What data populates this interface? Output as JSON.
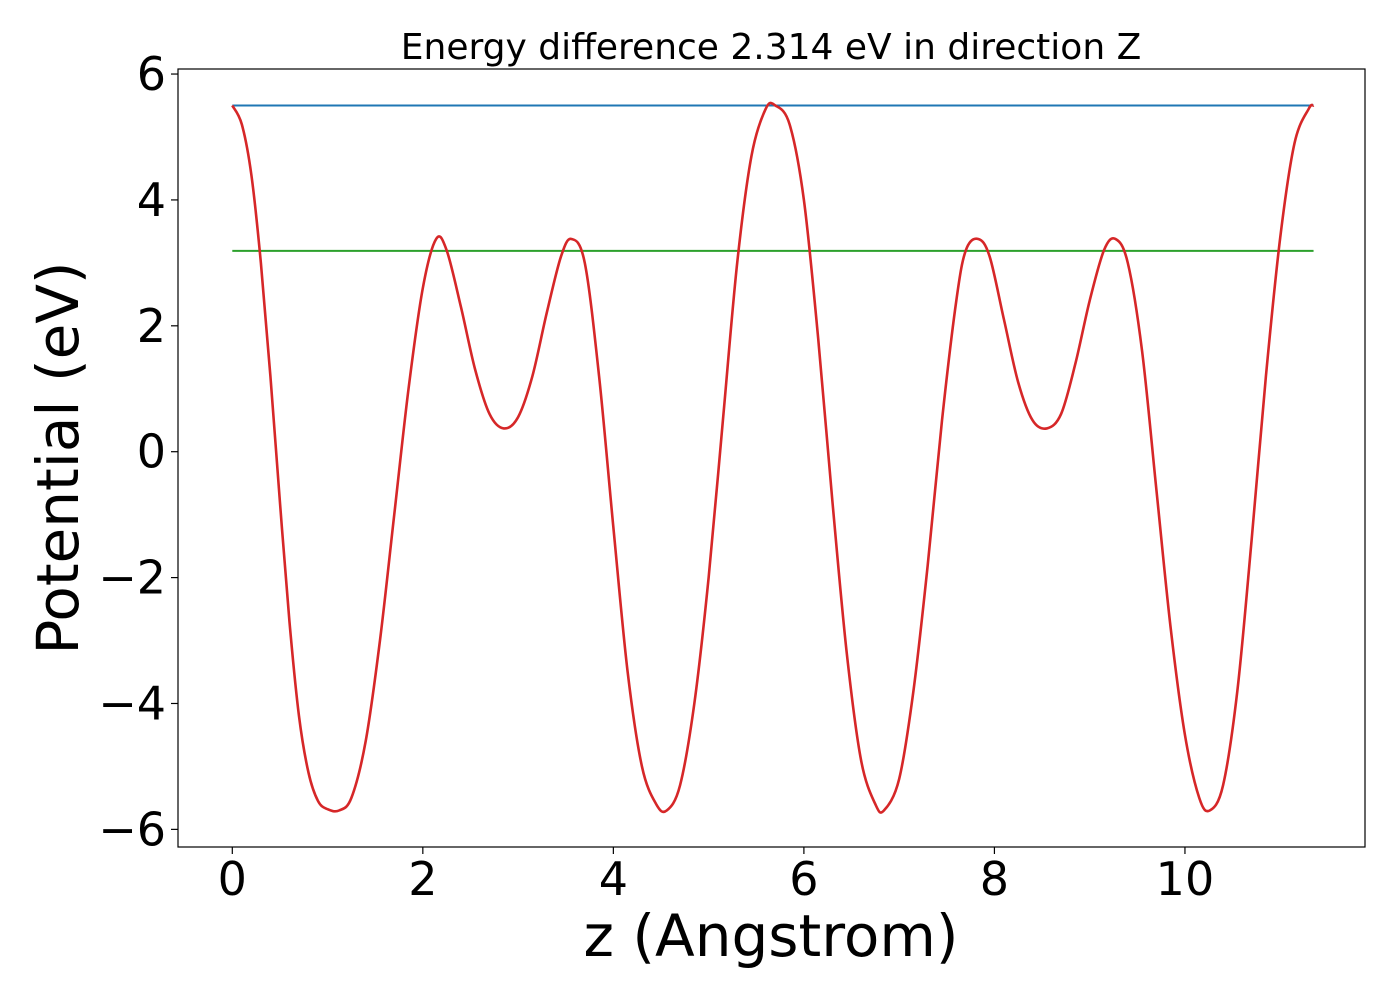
{
  "chart_data": {
    "type": "line",
    "title": "Energy difference 2.314 eV in direction Z",
    "xlabel": "z (Angstrom)",
    "ylabel": "Potential (eV)",
    "xlim": [
      -0.57,
      11.89
    ],
    "ylim": [
      -6.28,
      6.08
    ],
    "xticks": [
      0,
      2,
      4,
      6,
      8,
      10
    ],
    "xtick_labels": [
      "0",
      "2",
      "4",
      "6",
      "8",
      "10"
    ],
    "yticks": [
      6,
      4,
      2,
      0,
      -2,
      -4,
      -6
    ],
    "ytick_labels": [
      "6",
      "4",
      "2",
      "0",
      "−2",
      "−4",
      "−6"
    ],
    "grid": false,
    "legend": "none",
    "series": [
      {
        "color": "#d62728",
        "x": [
          0,
          0.1,
          0.2,
          0.3,
          0.4,
          0.5,
          0.6,
          0.7,
          0.8,
          0.9,
          1.0,
          1.12,
          1.25,
          1.4,
          1.55,
          1.7,
          1.85,
          2.0,
          2.14,
          2.25,
          2.4,
          2.55,
          2.7,
          2.85,
          3.0,
          3.15,
          3.3,
          3.45,
          3.56,
          3.7,
          3.85,
          4.0,
          4.15,
          4.3,
          4.45,
          4.56,
          4.7,
          4.85,
          5.0,
          5.15,
          5.3,
          5.45,
          5.6,
          5.7,
          5.85,
          6.0,
          6.15,
          6.3,
          6.45,
          6.6,
          6.75,
          6.84,
          7.0,
          7.15,
          7.3,
          7.45,
          7.6,
          7.7,
          7.83,
          7.95,
          8.1,
          8.25,
          8.4,
          8.55,
          8.7,
          8.85,
          9.0,
          9.15,
          9.27,
          9.4,
          9.55,
          9.7,
          9.85,
          10.0,
          10.15,
          10.26,
          10.4,
          10.55,
          10.7,
          10.85,
          11.0,
          11.15,
          11.3,
          11.35
        ],
        "y": [
          5.5,
          5.2,
          4.4,
          3.0,
          1.2,
          -0.8,
          -2.7,
          -4.2,
          -5.1,
          -5.55,
          -5.68,
          -5.7,
          -5.5,
          -4.6,
          -3.0,
          -1.0,
          1.0,
          2.6,
          3.38,
          3.2,
          2.3,
          1.3,
          0.6,
          0.37,
          0.55,
          1.2,
          2.2,
          3.1,
          3.38,
          3.0,
          1.2,
          -1.2,
          -3.5,
          -5.0,
          -5.6,
          -5.7,
          -5.3,
          -4.0,
          -2.0,
          0.5,
          3.0,
          4.7,
          5.45,
          5.5,
          5.2,
          4.0,
          1.8,
          -0.8,
          -3.2,
          -4.9,
          -5.6,
          -5.7,
          -5.2,
          -3.8,
          -1.8,
          0.5,
          2.4,
          3.2,
          3.38,
          3.1,
          2.1,
          1.1,
          0.5,
          0.37,
          0.6,
          1.4,
          2.4,
          3.2,
          3.38,
          3.0,
          1.6,
          -0.6,
          -2.8,
          -4.5,
          -5.5,
          -5.7,
          -5.3,
          -3.8,
          -1.4,
          1.2,
          3.4,
          4.9,
          5.45,
          5.5
        ]
      },
      {
        "color": "#1f77b4",
        "x": [
          0,
          11.35
        ],
        "y": [
          5.5,
          5.5
        ]
      },
      {
        "color": "#2ca02c",
        "x": [
          0,
          11.35
        ],
        "y": [
          3.19,
          3.19
        ]
      }
    ]
  }
}
